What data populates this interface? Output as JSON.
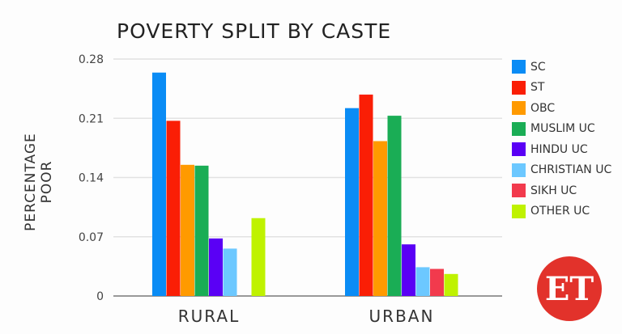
{
  "chart_data": {
    "type": "bar",
    "title": "POVERTY SPLIT BY CASTE",
    "ylabel": "PERCENTAGE POOR",
    "xlabel": "",
    "categories": [
      "RURAL",
      "URBAN"
    ],
    "ylim": [
      0,
      0.28
    ],
    "yticks": [
      "0",
      "0.07",
      "0.14",
      "0.21",
      "0.28"
    ],
    "grid": true,
    "legend_position": "right",
    "series": [
      {
        "name": "SC",
        "color": "#0a8cf5",
        "values": [
          0.264,
          0.222
        ]
      },
      {
        "name": "ST",
        "color": "#fa1e05",
        "values": [
          0.207,
          0.238
        ]
      },
      {
        "name": "OBC",
        "color": "#ff9a00",
        "values": [
          0.155,
          0.183
        ]
      },
      {
        "name": "MUSLIM UC",
        "color": "#1aad55",
        "values": [
          0.154,
          0.213
        ]
      },
      {
        "name": "HINDU UC",
        "color": "#5a00f5",
        "values": [
          0.068,
          0.061
        ]
      },
      {
        "name": "CHRISTIAN UC",
        "color": "#6cc8ff",
        "values": [
          0.056,
          0.034
        ]
      },
      {
        "name": "SIKH UC",
        "color": "#f23a4d",
        "values": [
          0,
          0.032
        ]
      },
      {
        "name": "OTHER UC",
        "color": "#bff200",
        "values": [
          0.092,
          0.026
        ]
      }
    ]
  },
  "logo": "ET"
}
